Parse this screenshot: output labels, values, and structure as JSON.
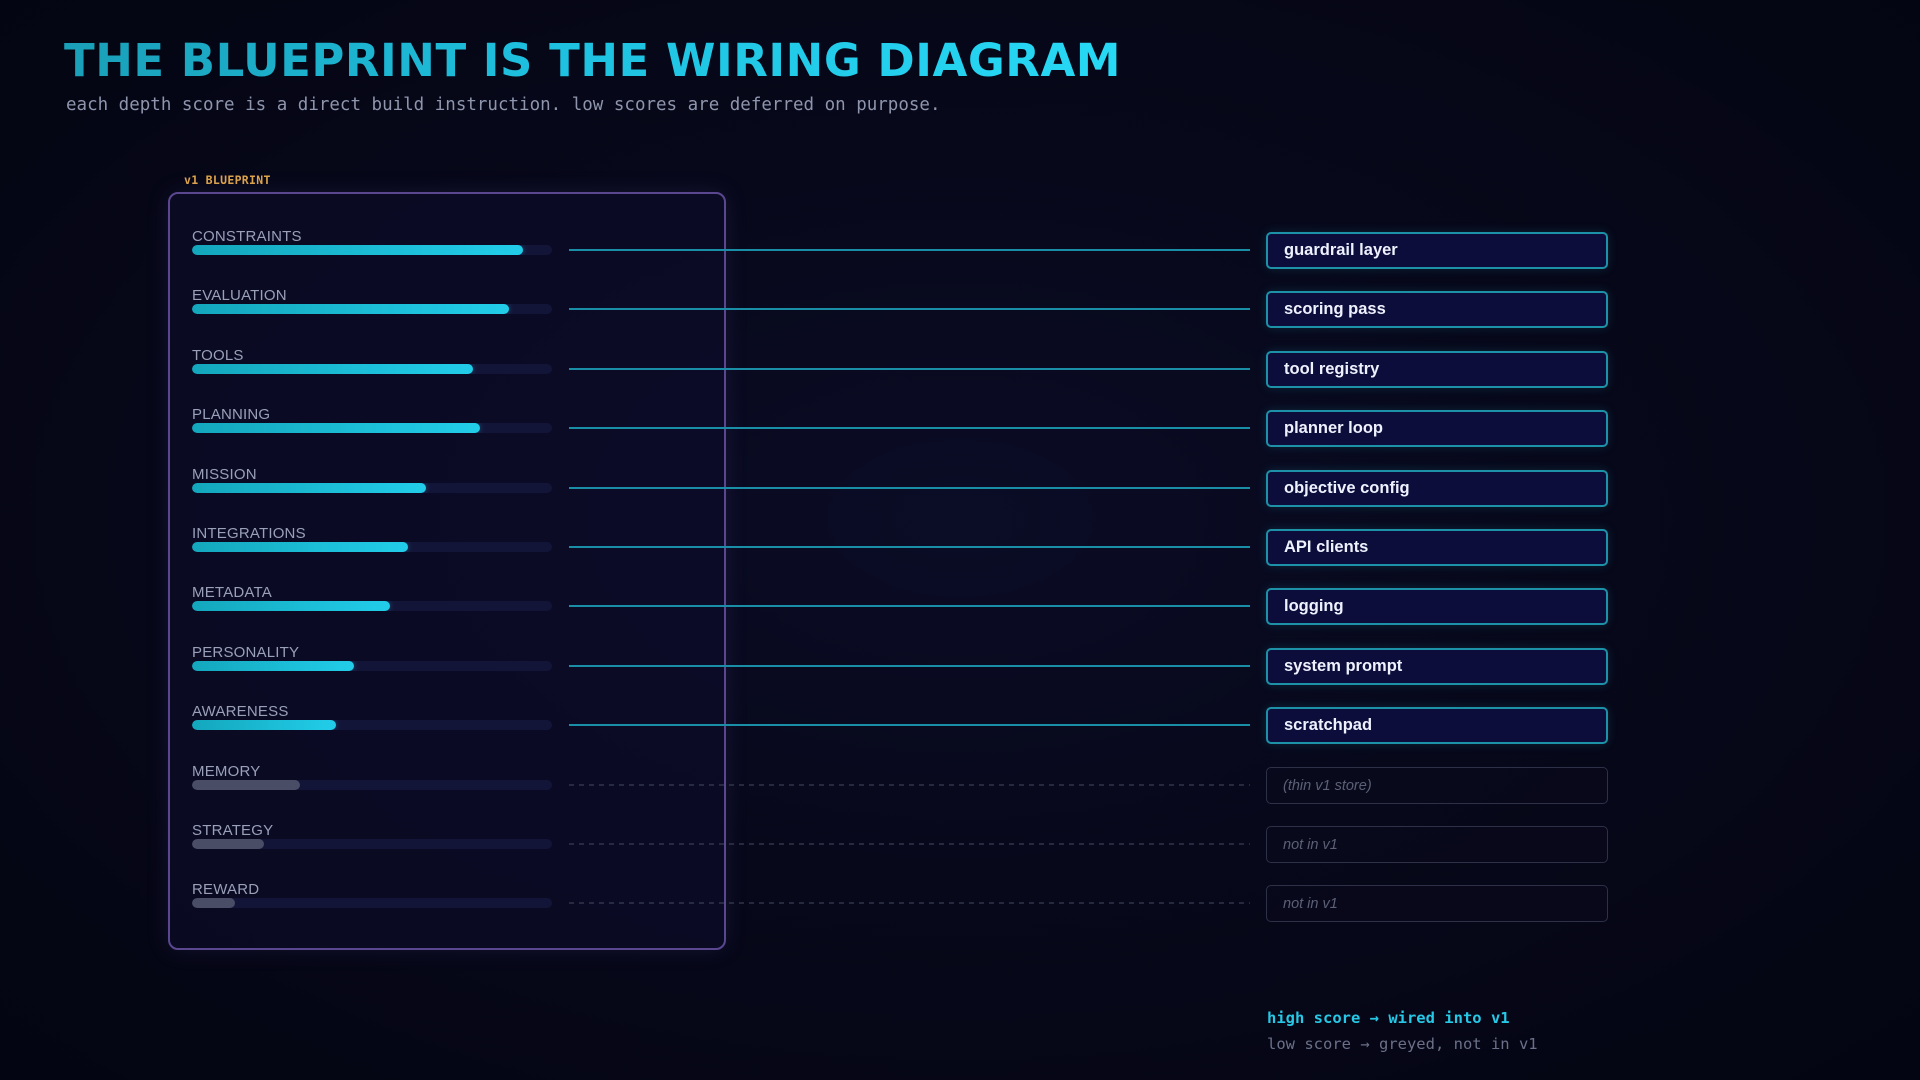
{
  "header": {
    "title": "THE BLUEPRINT IS THE WIRING DIAGRAM",
    "subtitle": "each depth score is a direct build instruction. low scores are deferred on purpose."
  },
  "panel": {
    "label": "v1 BLUEPRINT"
  },
  "rows": [
    {
      "label": "CONSTRAINTS",
      "score": 0.92,
      "wired": true,
      "target": "guardrail layer"
    },
    {
      "label": "EVALUATION",
      "score": 0.88,
      "wired": true,
      "target": "scoring pass"
    },
    {
      "label": "TOOLS",
      "score": 0.78,
      "wired": true,
      "target": "tool registry"
    },
    {
      "label": "PLANNING",
      "score": 0.8,
      "wired": true,
      "target": "planner loop"
    },
    {
      "label": "MISSION",
      "score": 0.65,
      "wired": true,
      "target": "objective config"
    },
    {
      "label": "INTEGRATIONS",
      "score": 0.6,
      "wired": true,
      "target": "API clients"
    },
    {
      "label": "METADATA",
      "score": 0.55,
      "wired": true,
      "target": "logging"
    },
    {
      "label": "PERSONALITY",
      "score": 0.45,
      "wired": true,
      "target": "system prompt"
    },
    {
      "label": "AWARENESS",
      "score": 0.4,
      "wired": true,
      "target": "scratchpad"
    },
    {
      "label": "MEMORY",
      "score": 0.3,
      "wired": false,
      "target": "(thin v1 store)"
    },
    {
      "label": "STRATEGY",
      "score": 0.2,
      "wired": false,
      "target": "not in v1"
    },
    {
      "label": "REWARD",
      "score": 0.12,
      "wired": false,
      "target": "not in v1"
    }
  ],
  "legend": {
    "high": "high score → wired into v1",
    "low": "low score → greyed, not in v1"
  },
  "colors": {
    "accent": "#22cde9",
    "wire": "#1a8ea6",
    "panel_border": "#5a4790",
    "panel_label": "#e0a64a",
    "greyed": "#4a4d66"
  }
}
